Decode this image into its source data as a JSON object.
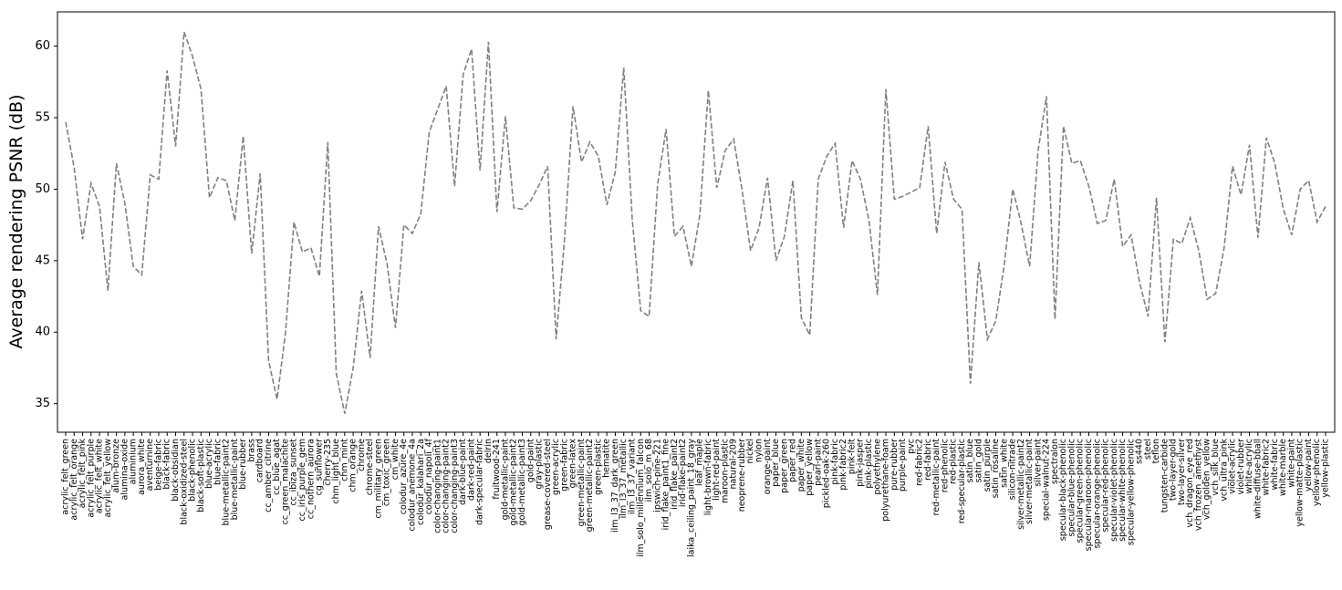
{
  "chart_data": {
    "type": "line",
    "ylabel": "Average rendering PSNR (dB)",
    "color": "#808080",
    "line_style": "dashed",
    "ylim": [
      33.0,
      62.4
    ],
    "yticks": [
      35,
      40,
      45,
      50,
      55,
      60
    ],
    "categories": [
      "acrylic_felt_green",
      "acrylic_felt_orange",
      "acrylic_felt_pink",
      "acrylic_felt_purple",
      "acrylic_felt_white",
      "acrylic_felt_yellow",
      "alum-bronze",
      "alumina-oxide",
      "aluminium",
      "aurora_white",
      "aventurnine",
      "beige-fabric",
      "black-fabric",
      "black-obsidian",
      "black-oxidized-steel",
      "black-phenolic",
      "black-soft-plastic",
      "blue-acrylic",
      "blue-fabric",
      "blue-metallic-paint2",
      "blue-metallic-paint",
      "blue-rubber",
      "brass",
      "cardboard",
      "cc_amber_citrine",
      "cc_blue_agat",
      "cc_green_malachite",
      "cc_ibiza_sunset",
      "cc_iris_purple_gem",
      "cc_nothern_aurora",
      "cg_sunflower",
      "cherry-235",
      "chm_light_blue",
      "chm_mint",
      "chm_orange",
      "chrome",
      "chrome-steel",
      "cm_military_green",
      "cm_toxic_green",
      "cm_white",
      "colodur_azure_4e",
      "colodur_anemone_4a",
      "colodur_kalahari_2a",
      "colodur_napoli_4f",
      "color-changing-paint1",
      "color-changing-paint2",
      "color-changing-paint3",
      "dark-blue-paint",
      "dark-red-paint",
      "dark-specular-fabric",
      "delrin",
      "fruitwood-241",
      "gold-metallic-paint",
      "gold-metallic-paint2",
      "gold-metallic-paint3",
      "gold-paint",
      "gray-plastic",
      "grease-covered-steel",
      "green-acrylic",
      "green-fabric",
      "green-latex",
      "green-metallic-paint",
      "green-metallic-paint2",
      "green-plastic",
      "hematite",
      "ilm_l3_37_dark_green",
      "ilm_l3_37_metallic",
      "ilm_l3_37_variant",
      "ilm_solo_millennium_falcon",
      "ilm_solo_m_68",
      "ipswich-pine-221",
      "irid_flake_paint1_fine",
      "irid_flake_paint2",
      "irid-flake-paint2",
      "laika_ceiling_paint_18_gray",
      "leaf_maple",
      "light-brown-fabric",
      "light-red-paint",
      "maroon-plastic",
      "natural-209",
      "neoprene-rubber",
      "nickel",
      "nylon",
      "orange-paint",
      "paper_blue",
      "paper_green",
      "paper_red",
      "paper_white",
      "paper_yellow",
      "pearl-paint",
      "pickled-oak-260",
      "pink-fabric",
      "pink-fabric2",
      "pink-felt",
      "pink-jasper",
      "pink-plastic",
      "polyethylene",
      "polyurethane-foam",
      "pure-rubber",
      "purple-paint",
      "pvc",
      "red-fabric2",
      "red-fabric",
      "red-metallic-paint",
      "red-phenolic",
      "red-plastic",
      "red-specular-plastic",
      "satin_blue",
      "satin_gold",
      "satin_purple",
      "satin_rosaline",
      "satin_white",
      "silicon-nitrade",
      "silver-metallic-paint2",
      "silver-metallic-paint",
      "silver-paint",
      "special-walnut-224",
      "spectralon",
      "specular-black-phenolic",
      "specular-blue-phenolic",
      "specular-green-phenolic",
      "specular-maroon-phenolic",
      "specular-orange-phenolic",
      "specular-red-phenolic",
      "specular-violet-phenolic",
      "specular-white-phenolic",
      "specular-yellow-phenolic",
      "ss440",
      "steel",
      "teflon",
      "tungsten-carbide",
      "two-layer-gold",
      "two-layer-silver",
      "vch_dragon_eye_red",
      "vch_frozen_amethyst",
      "vch_golden_yellow",
      "vch_silk_blue",
      "vch_ultra_pink",
      "violet-acrylic",
      "violet-rubber",
      "white-acrylic",
      "white-diffuse-bball",
      "white-fabric2",
      "white-fabric",
      "white-marble",
      "white-paint",
      "yellow-matte-plastic",
      "yellow-paint",
      "yellow-phenolic",
      "yellow-plastic"
    ],
    "values": [
      54.7,
      51.5,
      46.5,
      50.4,
      48.8,
      42.9,
      51.8,
      49.0,
      44.6,
      44.0,
      51.0,
      50.7,
      58.3,
      53.0,
      61.0,
      59.3,
      57.0,
      49.4,
      50.8,
      50.6,
      47.8,
      53.7,
      45.5,
      51.1,
      38.0,
      35.3,
      40.0,
      47.7,
      45.6,
      45.9,
      43.9,
      53.3,
      37.1,
      34.3,
      37.5,
      42.9,
      38.2,
      47.4,
      44.8,
      40.3,
      47.5,
      46.9,
      48.3,
      54.0,
      55.6,
      57.2,
      50.2,
      58.0,
      59.8,
      51.3,
      60.3,
      48.4,
      55.1,
      48.7,
      48.6,
      49.2,
      50.3,
      51.6,
      39.5,
      46.5,
      55.8,
      51.9,
      53.3,
      52.3,
      48.9,
      51.2,
      58.5,
      47.9,
      41.5,
      41.1,
      50.3,
      54.2,
      46.7,
      47.4,
      44.6,
      48.2,
      56.9,
      50.1,
      52.7,
      53.5,
      49.9,
      45.7,
      47.3,
      50.8,
      45.0,
      46.7,
      50.6,
      41.0,
      39.8,
      50.7,
      52.3,
      53.2,
      47.3,
      52.0,
      50.7,
      47.8,
      42.6,
      57.0,
      49.3,
      49.5,
      49.8,
      50.1,
      54.4,
      46.9,
      51.9,
      49.3,
      48.6,
      36.4,
      44.9,
      39.5,
      40.8,
      44.7,
      50.0,
      47.6,
      44.6,
      52.7,
      56.5,
      40.9,
      54.4,
      51.8,
      52.0,
      50.2,
      47.6,
      47.8,
      50.7,
      46.0,
      46.8,
      43.5,
      41.1,
      49.4,
      39.3,
      46.5,
      46.2,
      48.0,
      45.7,
      42.3,
      42.7,
      45.9,
      51.6,
      49.6,
      53.1,
      46.6,
      53.6,
      51.8,
      48.6,
      46.8,
      50.0,
      50.6,
      47.7,
      48.8
    ]
  }
}
